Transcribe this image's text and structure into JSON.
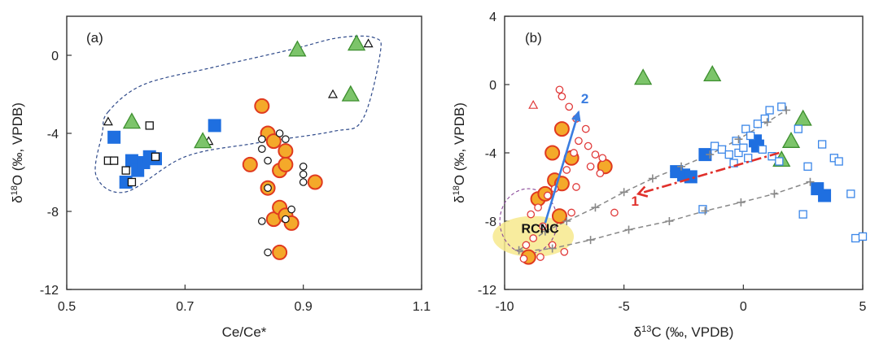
{
  "chart_data": [
    {
      "type": "scatter",
      "panel_label": "(a)",
      "xlabel": "Ce/Ce*",
      "ylabel": "δ18O (‰, VPDB)",
      "ylabel_parts": {
        "delta": "δ",
        "sup": "18",
        "rest": "O (‰, VPDB)"
      },
      "xlim": [
        0.5,
        1.1
      ],
      "ylim": [
        -12,
        2
      ],
      "xticks": [
        "0.5",
        "0.7",
        "0.9",
        "1.1"
      ],
      "xtick_values": [
        0.5,
        0.7,
        0.9,
        1.1
      ],
      "yticks": [
        "-12",
        "-8",
        "-4",
        "0"
      ],
      "ytick_values": [
        -12,
        -8,
        -4,
        0
      ],
      "series": [
        {
          "marker": "blue_square",
          "points": [
            [
              0.58,
              -4.2
            ],
            [
              0.6,
              -6.5
            ],
            [
              0.61,
              -5.4
            ],
            [
              0.62,
              -5.9
            ],
            [
              0.63,
              -5.5
            ],
            [
              0.64,
              -5.2
            ],
            [
              0.65,
              -5.3
            ],
            [
              0.75,
              -3.6
            ]
          ]
        },
        {
          "marker": "open_square",
          "points": [
            [
              0.57,
              -5.4
            ],
            [
              0.58,
              -5.4
            ],
            [
              0.6,
              -5.9
            ],
            [
              0.61,
              -6.5
            ],
            [
              0.64,
              -3.6
            ],
            [
              0.65,
              -5.2
            ]
          ]
        },
        {
          "marker": "open_triangle",
          "points": [
            [
              0.57,
              -3.4
            ],
            [
              0.74,
              -4.4
            ],
            [
              0.95,
              -2.0
            ],
            [
              1.01,
              0.6
            ]
          ]
        },
        {
          "marker": "green_triangle",
          "points": [
            [
              0.61,
              -3.4
            ],
            [
              0.73,
              -4.4
            ],
            [
              0.89,
              0.3
            ],
            [
              0.98,
              -2.0
            ],
            [
              0.99,
              0.6
            ]
          ]
        },
        {
          "marker": "orange_circle",
          "points": [
            [
              0.81,
              -5.6
            ],
            [
              0.83,
              -2.6
            ],
            [
              0.84,
              -6.8
            ],
            [
              0.84,
              -4.0
            ],
            [
              0.85,
              -4.4
            ],
            [
              0.85,
              -8.4
            ],
            [
              0.86,
              -5.9
            ],
            [
              0.86,
              -7.8
            ],
            [
              0.86,
              -10.1
            ],
            [
              0.87,
              -8.2
            ],
            [
              0.87,
              -4.9
            ],
            [
              0.87,
              -5.6
            ],
            [
              0.88,
              -8.6
            ],
            [
              0.92,
              -6.5
            ]
          ]
        },
        {
          "marker": "open_circle",
          "points": [
            [
              0.83,
              -4.3
            ],
            [
              0.83,
              -4.8
            ],
            [
              0.84,
              -5.4
            ],
            [
              0.84,
              -6.8
            ],
            [
              0.83,
              -8.5
            ],
            [
              0.84,
              -10.1
            ],
            [
              0.86,
              -4.0
            ],
            [
              0.87,
              -4.3
            ],
            [
              0.87,
              -8.4
            ],
            [
              0.88,
              -7.9
            ],
            [
              0.9,
              -5.7
            ],
            [
              0.9,
              -6.1
            ],
            [
              0.9,
              -6.5
            ]
          ]
        }
      ],
      "envelope": [
        [
          0.57,
          -2.9
        ],
        [
          0.63,
          -1.5
        ],
        [
          0.75,
          -0.6
        ],
        [
          0.88,
          0.3
        ],
        [
          0.96,
          0.9
        ],
        [
          1.02,
          0.9
        ],
        [
          1.03,
          0.1
        ],
        [
          1.0,
          -3.3
        ],
        [
          0.95,
          -3.9
        ],
        [
          0.82,
          -4.5
        ],
        [
          0.7,
          -5.2
        ],
        [
          0.6,
          -7.0
        ],
        [
          0.55,
          -6.2
        ],
        [
          0.56,
          -4.0
        ]
      ]
    },
    {
      "type": "scatter",
      "panel_label": "(b)",
      "xlabel": "δ13C (‰, VPDB)",
      "xlabel_parts": {
        "delta": "δ",
        "sup": "13",
        "rest": "C (‰, VPDB)"
      },
      "ylabel": "δ18O (‰, VPDB)",
      "ylabel_parts": {
        "delta": "δ",
        "sup": "18",
        "rest": "O (‰, VPDB)"
      },
      "xlim": [
        -10,
        5
      ],
      "ylim": [
        -12,
        4
      ],
      "xticks": [
        "-10",
        "-5",
        "0",
        "5"
      ],
      "xtick_values": [
        -10,
        -5,
        0,
        5
      ],
      "yticks": [
        "-12",
        "-8",
        "-4",
        "0",
        "4"
      ],
      "ytick_values": [
        -12,
        -8,
        -4,
        0,
        4
      ],
      "series": [
        {
          "marker": "orange_circle",
          "points": [
            [
              -9.0,
              -10.1
            ],
            [
              -8.6,
              -6.7
            ],
            [
              -8.3,
              -6.4
            ],
            [
              -7.9,
              -5.6
            ],
            [
              -7.6,
              -5.8
            ],
            [
              -8.0,
              -4.0
            ],
            [
              -7.2,
              -4.3
            ],
            [
              -5.8,
              -4.8
            ],
            [
              -7.6,
              -2.6
            ],
            [
              -7.7,
              -7.7
            ]
          ]
        },
        {
          "marker": "small_open_red_circle",
          "points": [
            [
              -7.7,
              -0.3
            ],
            [
              -7.6,
              -0.7
            ],
            [
              -7.3,
              -1.3
            ],
            [
              -7.0,
              -2.0
            ],
            [
              -6.6,
              -2.6
            ],
            [
              -6.9,
              -3.3
            ],
            [
              -6.5,
              -3.6
            ],
            [
              -6.2,
              -4.1
            ],
            [
              -5.9,
              -4.3
            ],
            [
              -6.4,
              -4.8
            ],
            [
              -6.0,
              -5.2
            ],
            [
              -7.1,
              -4.0
            ],
            [
              -7.4,
              -5.0
            ],
            [
              -7.9,
              -6.1
            ],
            [
              -8.2,
              -6.5
            ],
            [
              -8.6,
              -7.2
            ],
            [
              -8.9,
              -7.6
            ],
            [
              -8.4,
              -8.3
            ],
            [
              -8.8,
              -9.0
            ],
            [
              -9.1,
              -9.4
            ],
            [
              -8.0,
              -9.4
            ],
            [
              -7.5,
              -9.8
            ],
            [
              -5.4,
              -7.5
            ],
            [
              -7.0,
              -6.0
            ],
            [
              -7.2,
              -7.5
            ],
            [
              -8.5,
              -10.1
            ],
            [
              -9.2,
              -10.2
            ]
          ]
        },
        {
          "marker": "small_open_red_triangle",
          "points": [
            [
              -8.8,
              -1.2
            ]
          ]
        },
        {
          "marker": "green_triangle",
          "points": [
            [
              -4.2,
              0.4
            ],
            [
              -1.3,
              0.6
            ],
            [
              2.5,
              -2.0
            ],
            [
              2.0,
              -3.3
            ],
            [
              1.6,
              -4.4
            ]
          ]
        },
        {
          "marker": "blue_square",
          "points": [
            [
              -2.8,
              -5.1
            ],
            [
              -2.5,
              -5.3
            ],
            [
              -2.2,
              -5.4
            ],
            [
              -1.6,
              -4.1
            ],
            [
              0.6,
              -3.6
            ],
            [
              0.5,
              -3.3
            ],
            [
              3.1,
              -6.1
            ],
            [
              3.4,
              -6.5
            ]
          ]
        },
        {
          "marker": "open_blue_square",
          "points": [
            [
              -1.2,
              -3.6
            ],
            [
              -0.9,
              -3.8
            ],
            [
              -0.6,
              -4.1
            ],
            [
              -0.4,
              -4.6
            ],
            [
              -0.2,
              -4.0
            ],
            [
              0.0,
              -3.7
            ],
            [
              0.2,
              -4.3
            ],
            [
              -0.3,
              -3.3
            ],
            [
              0.1,
              -2.6
            ],
            [
              0.3,
              -3.0
            ],
            [
              0.6,
              -2.3
            ],
            [
              0.9,
              -2.0
            ],
            [
              1.1,
              -1.5
            ],
            [
              1.6,
              -1.3
            ],
            [
              0.8,
              -3.8
            ],
            [
              1.2,
              -4.2
            ],
            [
              1.5,
              -4.5
            ],
            [
              2.3,
              -2.6
            ],
            [
              2.7,
              -4.8
            ],
            [
              3.3,
              -3.5
            ],
            [
              3.8,
              -4.3
            ],
            [
              4.0,
              -4.5
            ],
            [
              2.5,
              -7.6
            ],
            [
              4.5,
              -6.4
            ],
            [
              4.7,
              -9.0
            ],
            [
              5.0,
              -8.9
            ],
            [
              -1.7,
              -7.3
            ]
          ]
        },
        {
          "marker": "gray_cross",
          "points": [
            [
              -9.4,
              -9.7
            ],
            [
              -8.3,
              -8.6
            ],
            [
              -7.4,
              -8.0
            ],
            [
              -6.2,
              -7.2
            ],
            [
              -5.0,
              -6.3
            ],
            [
              -3.8,
              -5.5
            ],
            [
              -2.6,
              -4.8
            ],
            [
              -1.4,
              -4.1
            ],
            [
              -0.2,
              -3.2
            ],
            [
              1.0,
              -2.2
            ],
            [
              1.8,
              -1.5
            ],
            [
              -8.0,
              -9.6
            ],
            [
              -6.4,
              -9.1
            ],
            [
              -4.8,
              -8.5
            ],
            [
              -3.1,
              -8.0
            ],
            [
              -1.6,
              -7.4
            ],
            [
              -0.1,
              -6.9
            ],
            [
              1.3,
              -6.4
            ],
            [
              2.8,
              -5.7
            ]
          ]
        }
      ],
      "annotations": [
        {
          "text": "RCNC",
          "x": -9.3,
          "y": -8.7
        },
        {
          "text": "2",
          "x": -6.8,
          "y": -1.1
        },
        {
          "text": "1",
          "x": -4.7,
          "y": -7.1
        }
      ],
      "trend_2": {
        "from": [
          -8.3,
          -8.1
        ],
        "to": [
          -6.9,
          -1.6
        ],
        "color": "#3a7de0"
      },
      "trend_1": {
        "from": [
          1.5,
          -4.0
        ],
        "to": [
          -4.4,
          -6.4
        ],
        "color": "#e0302b"
      },
      "lines_gray": [
        [
          [
            -9.4,
            -9.7
          ],
          [
            -8.3,
            -8.6
          ],
          [
            -7.4,
            -8.0
          ],
          [
            -6.2,
            -7.2
          ],
          [
            -5.0,
            -6.3
          ],
          [
            -3.8,
            -5.5
          ],
          [
            -2.6,
            -4.8
          ],
          [
            -1.4,
            -4.1
          ],
          [
            -0.2,
            -3.2
          ],
          [
            1.0,
            -2.2
          ],
          [
            1.8,
            -1.5
          ]
        ],
        [
          [
            -9.4,
            -9.8
          ],
          [
            -8.0,
            -9.6
          ],
          [
            -6.4,
            -9.1
          ],
          [
            -4.8,
            -8.5
          ],
          [
            -3.1,
            -8.0
          ],
          [
            -1.6,
            -7.4
          ],
          [
            -0.1,
            -6.9
          ],
          [
            1.3,
            -6.4
          ],
          [
            2.8,
            -5.7
          ]
        ]
      ],
      "rcnc_ellipse": {
        "cx": -8.8,
        "cy": -8.9,
        "rx": 1.7,
        "ry": 1.2,
        "fill": "#f7e98d"
      },
      "rcnc_dashed_ellipse": {
        "cx": -9.0,
        "cy": -8.0,
        "rx": 1.2,
        "ry": 1.9
      }
    }
  ],
  "colors": {
    "blue_square": "#1f6fe0",
    "open_blue_square": "#3a86e8",
    "green_fill": "#7cc46a",
    "green_stroke": "#3d8f2f",
    "orange_fill": "#f4a92a",
    "orange_stroke": "#e03a1f",
    "red_open": "#e03a3a",
    "gray": "#888888",
    "envelope": "#2f4a8a"
  }
}
